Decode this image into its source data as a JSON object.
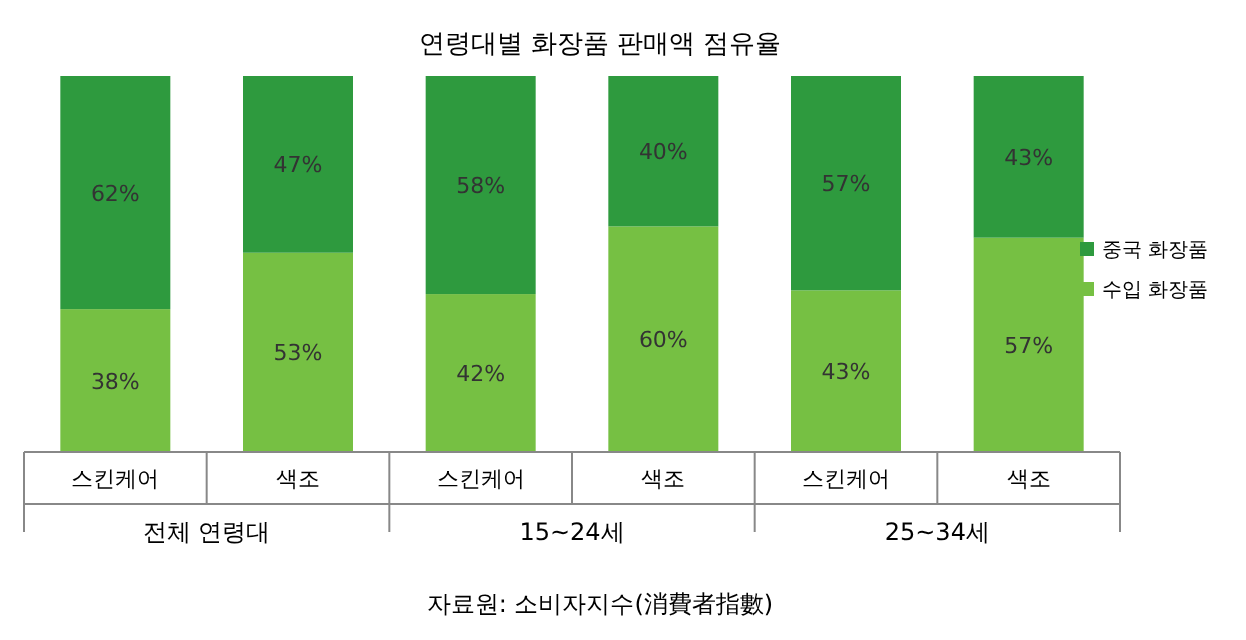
{
  "chart_data": {
    "type": "bar",
    "stacked": true,
    "title": "연령대별 화장품 판매액 점유율",
    "categories": [
      "스킨케어",
      "색조",
      "스킨케어",
      "색조",
      "스킨케어",
      "색조"
    ],
    "series": [
      {
        "name": "수입 화장품",
        "color": "#76c043",
        "values": [
          38,
          53,
          42,
          60,
          43,
          57
        ],
        "value_labels": [
          "38%",
          "53%",
          "42%",
          "60%",
          "43%",
          "57%"
        ]
      },
      {
        "name": "중국 화장품",
        "color": "#2e9a3e",
        "values": [
          62,
          47,
          58,
          40,
          57,
          43
        ],
        "value_labels": [
          "62%",
          "47%",
          "58%",
          "40%",
          "57%",
          "43%"
        ]
      }
    ],
    "annotations": [
      "전체 연령대",
      "15~24세",
      "25~34세",
      "자료원: 소비자지수(消費者指數)"
    ],
    "legend": "right"
  }
}
